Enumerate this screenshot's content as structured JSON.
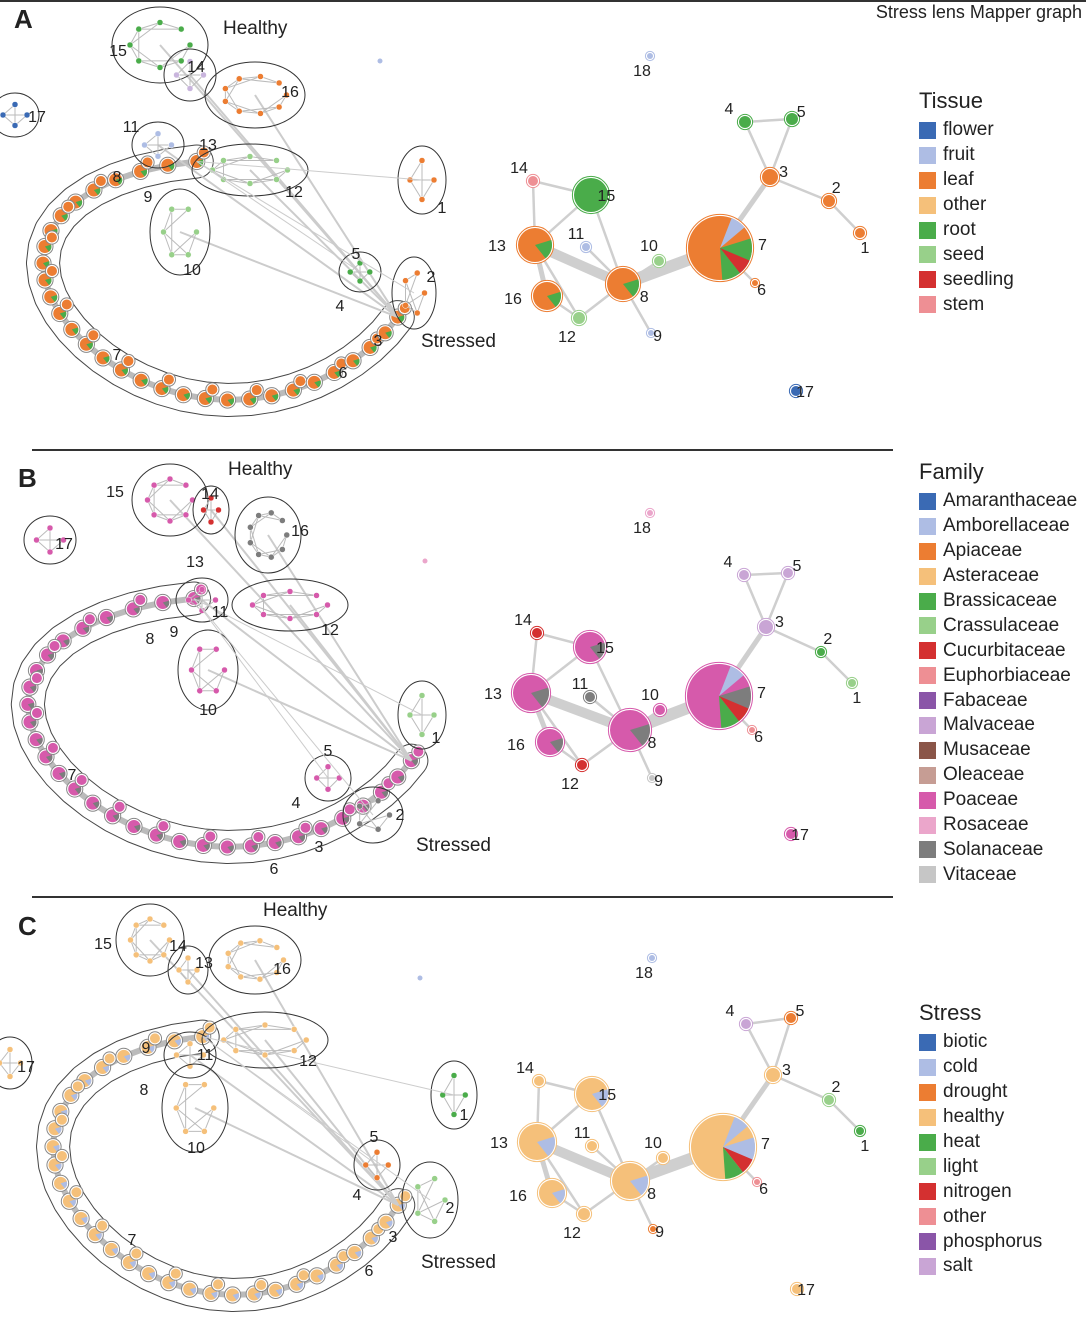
{
  "title": "Stress lens Mapper graph",
  "panels": [
    {
      "letter": "A",
      "healthy_label": "Healthy",
      "stressed_label": "Stressed",
      "legend": {
        "title": "Tissue",
        "items": [
          {
            "label": "flower",
            "color": "#3a6ab4"
          },
          {
            "label": "fruit",
            "color": "#aebde4"
          },
          {
            "label": "leaf",
            "color": "#ec7d32"
          },
          {
            "label": "other",
            "color": "#f5c07a"
          },
          {
            "label": "root",
            "color": "#4aac4a"
          },
          {
            "label": "seed",
            "color": "#98d08a"
          },
          {
            "label": "seedling",
            "color": "#d43030"
          },
          {
            "label": "stem",
            "color": "#ee8f94"
          }
        ]
      },
      "node_color": "#ec7d32",
      "node_accent": "#4aac4a",
      "groups": {
        "g15": "#4aac4a",
        "g14": "#c9b5dd",
        "g16": "#ec7d32",
        "g11": "#aebde4",
        "g12": "#98d08a",
        "g10": "#98d08a",
        "g17": "#3a6ab4",
        "g1": "#ec7d32",
        "g2": "#ec7d32",
        "g5": "#4aac4a",
        "g18": "#aebde4"
      },
      "summary_labels": [
        "1",
        "2",
        "3",
        "4",
        "5",
        "6",
        "7",
        "8",
        "9",
        "10",
        "11",
        "12",
        "13",
        "14",
        "15",
        "16",
        "17",
        "18"
      ],
      "graph_labels": [
        "15",
        "14",
        "16",
        "11",
        "13",
        "8",
        "9",
        "12",
        "10",
        "17",
        "1",
        "5",
        "4",
        "2",
        "3",
        "6",
        "7"
      ],
      "summary_colors": {
        "n1": "#ec7d32",
        "n2": "#ec7d32",
        "n3": "#ec7d32",
        "n4": "#4aac4a",
        "n5": "#4aac4a",
        "n6": "#ec7d32",
        "n7": "#ec7d32",
        "n8": "#ec7d32",
        "n9": "#aebde4",
        "n10": "#98d08a",
        "n11": "#aebde4",
        "n12": "#98d08a",
        "n13": "#ec7d32",
        "n14": "#ee8f94",
        "n15": "#4aac4a",
        "n16": "#ec7d32",
        "n17": "#3a6ab4",
        "n18": "#aebde4"
      }
    },
    {
      "letter": "B",
      "healthy_label": "Healthy",
      "stressed_label": "Stressed",
      "legend": {
        "title": "Family",
        "items": [
          {
            "label": "Amaranthaceae",
            "color": "#3a6ab4"
          },
          {
            "label": "Amborellaceae",
            "color": "#aebde4"
          },
          {
            "label": "Apiaceae",
            "color": "#ec7d32"
          },
          {
            "label": "Asteraceae",
            "color": "#f5c07a"
          },
          {
            "label": "Brassicaceae",
            "color": "#4aac4a"
          },
          {
            "label": "Crassulaceae",
            "color": "#98d08a"
          },
          {
            "label": "Cucurbitaceae",
            "color": "#d43030"
          },
          {
            "label": "Euphorbiaceae",
            "color": "#ee8f94"
          },
          {
            "label": "Fabaceae",
            "color": "#8a55a8"
          },
          {
            "label": "Malvaceae",
            "color": "#c9a5d5"
          },
          {
            "label": "Musaceae",
            "color": "#8a5548"
          },
          {
            "label": "Oleaceae",
            "color": "#c69d94"
          },
          {
            "label": "Poaceae",
            "color": "#d65aab"
          },
          {
            "label": "Rosaceae",
            "color": "#eba6cb"
          },
          {
            "label": "Solanaceae",
            "color": "#7d7d7d"
          },
          {
            "label": "Vitaceae",
            "color": "#c6c6c6"
          }
        ]
      },
      "node_color": "#d65aab",
      "node_accent": "#7d7d7d",
      "groups": {
        "g15": "#d65aab",
        "g14": "#d43030",
        "g16": "#7d7d7d",
        "g11": "#d65aab",
        "g12": "#d65aab",
        "g10": "#d65aab",
        "g17": "#d65aab",
        "g1": "#98d08a",
        "g2": "#7d7d7d",
        "g5": "#d65aab",
        "g18": "#eba6cb"
      },
      "summary_labels": [
        "1",
        "2",
        "3",
        "4",
        "5",
        "6",
        "7",
        "8",
        "9",
        "10",
        "11",
        "12",
        "13",
        "14",
        "15",
        "16",
        "17",
        "18"
      ],
      "graph_labels": [
        "15",
        "14",
        "16",
        "11",
        "13",
        "8",
        "9",
        "12",
        "10",
        "17",
        "1",
        "5",
        "4",
        "2",
        "3",
        "6",
        "7"
      ],
      "summary_colors": {
        "n1": "#98d08a",
        "n2": "#4aac4a",
        "n3": "#c9a5d5",
        "n4": "#c9a5d5",
        "n5": "#c9a5d5",
        "n6": "#ee8f94",
        "n7": "#d65aab",
        "n8": "#d65aab",
        "n9": "#c6c6c6",
        "n10": "#d65aab",
        "n11": "#7d7d7d",
        "n12": "#d43030",
        "n13": "#d65aab",
        "n14": "#d43030",
        "n15": "#d65aab",
        "n16": "#d65aab",
        "n17": "#d65aab",
        "n18": "#eba6cb"
      }
    },
    {
      "letter": "C",
      "healthy_label": "Healthy",
      "stressed_label": "Stressed",
      "legend": {
        "title": "Stress",
        "items": [
          {
            "label": "biotic",
            "color": "#3a6ab4"
          },
          {
            "label": "cold",
            "color": "#aebde4"
          },
          {
            "label": "drought",
            "color": "#ec7d32"
          },
          {
            "label": "healthy",
            "color": "#f5c07a"
          },
          {
            "label": "heat",
            "color": "#4aac4a"
          },
          {
            "label": "light",
            "color": "#98d08a"
          },
          {
            "label": "nitrogen",
            "color": "#d43030"
          },
          {
            "label": "other",
            "color": "#ee8f94"
          },
          {
            "label": "phosphorus",
            "color": "#8a55a8"
          },
          {
            "label": "salt",
            "color": "#c9a5d5"
          }
        ]
      },
      "node_color": "#f5c07a",
      "node_accent": "#aebde4",
      "groups": {
        "g15": "#f5c07a",
        "g14": "#f5c07a",
        "g16": "#f5c07a",
        "g11": "#f5c07a",
        "g12": "#f5c07a",
        "g10": "#f5c07a",
        "g17": "#f5c07a",
        "g1": "#4aac4a",
        "g2": "#98d08a",
        "g5": "#ec7d32",
        "g18": "#aebde4"
      },
      "summary_labels": [
        "1",
        "2",
        "3",
        "4",
        "5",
        "6",
        "7",
        "8",
        "9",
        "10",
        "11",
        "12",
        "13",
        "14",
        "15",
        "16",
        "17",
        "18"
      ],
      "graph_labels": [
        "15",
        "14",
        "13",
        "16",
        "9",
        "11",
        "12",
        "8",
        "10",
        "17",
        "1",
        "5",
        "4",
        "2",
        "3",
        "6",
        "7"
      ],
      "summary_colors": {
        "n1": "#4aac4a",
        "n2": "#98d08a",
        "n3": "#f5c07a",
        "n4": "#c9a5d5",
        "n5": "#ec7d32",
        "n6": "#ee8f94",
        "n7": "#f5c07a",
        "n8": "#f5c07a",
        "n9": "#ec7d32",
        "n10": "#f5c07a",
        "n11": "#f5c07a",
        "n12": "#f5c07a",
        "n13": "#f5c07a",
        "n14": "#f5c07a",
        "n15": "#f5c07a",
        "n16": "#f5c07a",
        "n17": "#f5c07a",
        "n18": "#aebde4"
      }
    }
  ]
}
